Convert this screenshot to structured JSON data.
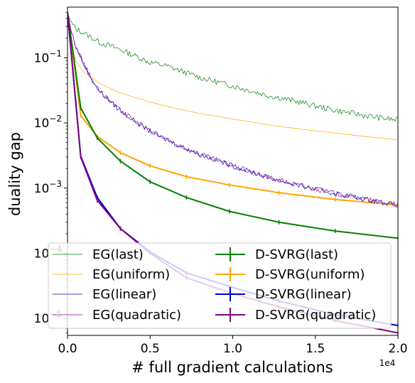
{
  "chart_data": {
    "type": "line",
    "title": "",
    "xlabel": "# full gradient calculations",
    "ylabel": "duality gap",
    "x_offset_label": "1e4",
    "xlim": [
      0,
      20000
    ],
    "ylim": [
      5.5e-06,
      0.6
    ],
    "yscale": "log",
    "grid": false,
    "legend_position": "lower-left",
    "x_tick_labels": [
      "0.0",
      "0.5",
      "1.0",
      "1.5",
      "2.0"
    ],
    "x_tick_values": [
      0,
      5000,
      10000,
      15000,
      20000
    ],
    "y_tick_labels": [
      {
        "base": "10",
        "exp": "−1",
        "value": 0.1
      },
      {
        "base": "10",
        "exp": "−2",
        "value": 0.01
      },
      {
        "base": "10",
        "exp": "−3",
        "value": 0.001
      },
      {
        "base": "10",
        "exp": "−4",
        "value": 0.0001
      },
      {
        "base": "10",
        "exp": "−5",
        "value": 1e-05
      }
    ],
    "series": [
      {
        "name": "EG(last)",
        "color": "#008000",
        "style": "thin",
        "noise": 0.09,
        "x": [
          0,
          200,
          500,
          1000,
          2000,
          3000,
          4000,
          5000,
          6000,
          8000,
          10000,
          12000,
          14000,
          16000,
          18000,
          20000
        ],
        "y": [
          0.5,
          0.35,
          0.28,
          0.24,
          0.17,
          0.14,
          0.11,
          0.085,
          0.075,
          0.05,
          0.037,
          0.027,
          0.021,
          0.016,
          0.013,
          0.011
        ]
      },
      {
        "name": "EG(uniform)",
        "color": "#FFA500",
        "style": "thin",
        "noise": 0,
        "x": [
          0,
          200,
          500,
          1000,
          2000,
          3000,
          4000,
          5000,
          6000,
          8000,
          10000,
          12000,
          14000,
          16000,
          18000,
          20000
        ],
        "y": [
          0.4,
          0.16,
          0.09,
          0.06,
          0.04,
          0.03,
          0.025,
          0.021,
          0.018,
          0.014,
          0.0115,
          0.0095,
          0.0081,
          0.0071,
          0.0062,
          0.0055
        ]
      },
      {
        "name": "EG(linear)",
        "color": "#0000CD",
        "style": "thin",
        "noise": 0.08,
        "x": [
          0,
          200,
          500,
          1000,
          1500,
          2000,
          3000,
          4000,
          5000,
          6000,
          8000,
          10000,
          12000,
          14000,
          16000,
          18000,
          20000
        ],
        "y": [
          0.5,
          0.27,
          0.15,
          0.08,
          0.045,
          0.03,
          0.017,
          0.011,
          0.0075,
          0.0055,
          0.0033,
          0.0022,
          0.0015,
          0.0011,
          0.00085,
          0.00068,
          0.00055
        ]
      },
      {
        "name": "EG(quadratic)",
        "color": "#8B008B",
        "style": "thin",
        "noise": 0.08,
        "x": [
          0,
          200,
          500,
          1000,
          1500,
          2000,
          3000,
          4000,
          5000,
          6000,
          8000,
          10000,
          12000,
          14000,
          16000,
          18000,
          20000
        ],
        "y": [
          0.5,
          0.27,
          0.15,
          0.08,
          0.045,
          0.03,
          0.017,
          0.011,
          0.0075,
          0.0055,
          0.0033,
          0.0022,
          0.0015,
          0.0011,
          0.00085,
          0.00068,
          0.00055
        ]
      },
      {
        "name": "D-SVRG(last)",
        "color": "#008000",
        "style": "thick",
        "noise": 0,
        "x": [
          0,
          800,
          1800,
          3200,
          5000,
          7200,
          9800,
          12800,
          16200,
          20000
        ],
        "y": [
          0.5,
          0.017,
          0.0059,
          0.0026,
          0.00125,
          0.00072,
          0.00044,
          0.0003,
          0.00022,
          0.00017
        ]
      },
      {
        "name": "D-SVRG(uniform)",
        "color": "#FFA500",
        "style": "thick",
        "noise": 0,
        "x": [
          0,
          800,
          1800,
          3200,
          5000,
          7200,
          9800,
          12800,
          16200,
          20000
        ],
        "y": [
          0.5,
          0.013,
          0.0062,
          0.0035,
          0.0022,
          0.0015,
          0.00112,
          0.00085,
          0.00067,
          0.00055
        ]
      },
      {
        "name": "D-SVRG(linear)",
        "color": "#0000CD",
        "style": "thick",
        "noise": 0,
        "x": [
          0,
          800,
          1800,
          3200,
          5000,
          7200,
          9800,
          12800,
          16200,
          20000
        ],
        "y": [
          0.5,
          0.0031,
          0.00072,
          0.00024,
          0.000105,
          5e-05,
          3.1e-05,
          1.85e-05,
          1.15e-05,
          7.8e-06
        ]
      },
      {
        "name": "D-SVRG(quadratic)",
        "color": "#800080",
        "style": "thick",
        "noise": 0,
        "x": [
          0,
          800,
          1800,
          3200,
          5000,
          7200,
          9800,
          12800,
          16200,
          20000
        ],
        "y": [
          0.5,
          0.003,
          0.00065,
          0.00024,
          0.0001,
          4.2e-05,
          2.5e-05,
          1.5e-05,
          9.3e-06,
          6e-06
        ]
      }
    ]
  }
}
